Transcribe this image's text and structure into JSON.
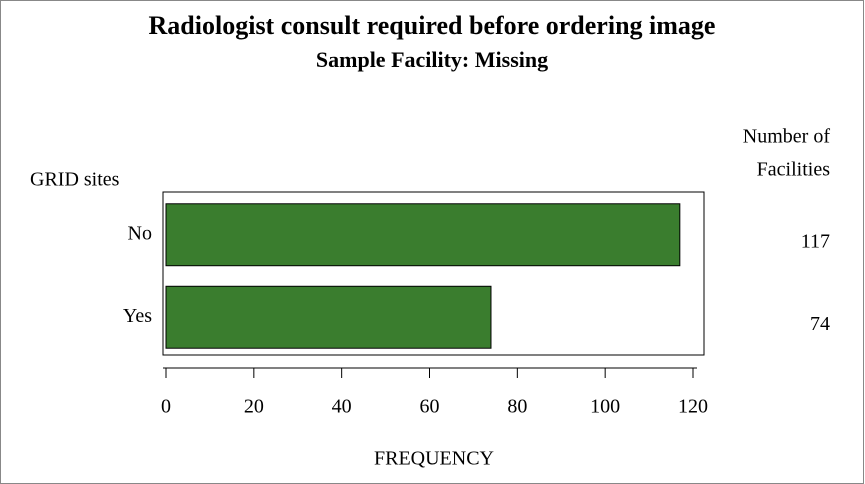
{
  "chart_data": {
    "type": "barh",
    "title": "Radiologist consult required before ordering image",
    "subtitle": "Sample Facility: Missing",
    "y_label": "GRID sites",
    "stat_label": [
      "Number of",
      "Facilities"
    ],
    "x_label": "FREQUENCY",
    "categories": [
      "No",
      "Yes"
    ],
    "values": [
      117,
      74
    ],
    "color": "#3a7d2e",
    "xlim": [
      0,
      120
    ],
    "xticks": [
      0,
      20,
      40,
      60,
      80,
      100,
      120
    ]
  }
}
